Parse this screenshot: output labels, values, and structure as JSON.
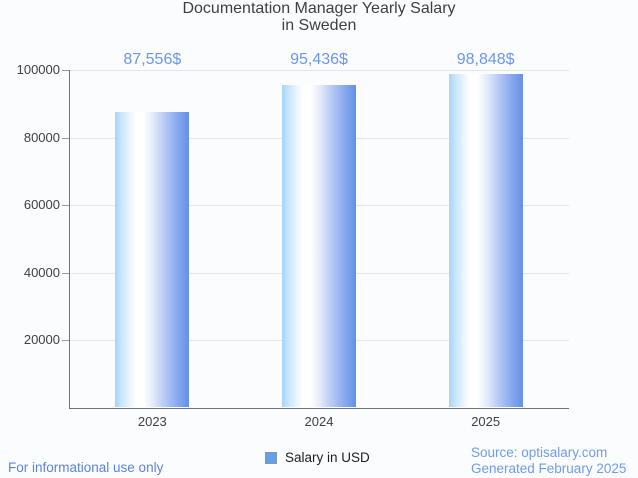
{
  "page": {
    "background_color": "#fbfcfe",
    "accent_blue": "#6d96e8"
  },
  "chart_data": {
    "type": "bar",
    "title": "Documentation Manager Yearly Salary in Sweden",
    "title_lines": [
      "Documentation Manager Yearly Salary",
      "in Sweden"
    ],
    "categories": [
      "2023",
      "2024",
      "2025"
    ],
    "series": [
      {
        "name": "Salary in USD",
        "values": [
          87556,
          95436,
          98848
        ]
      }
    ],
    "value_labels": [
      "87,556$",
      "95,436$",
      "98,848$"
    ],
    "xlabel": "",
    "ylabel": "",
    "ylim": [
      0,
      100000
    ],
    "yticks": [
      20000,
      40000,
      60000,
      80000,
      100000
    ],
    "ytick_labels": [
      "20000",
      "40000",
      "60000",
      "80000",
      "100000"
    ],
    "grid": true,
    "legend_position": "bottom",
    "bar_gradient": [
      "#a7d4f9",
      "#ffffff",
      "#6590e6"
    ],
    "annotation_color": "#6d96e8"
  },
  "legend": {
    "label": "Salary in USD",
    "swatch_color": "#63a0e8"
  },
  "footer": {
    "left": "For informational use only",
    "source": "Source: optisalary.com",
    "generated": "Generated February 2025"
  }
}
